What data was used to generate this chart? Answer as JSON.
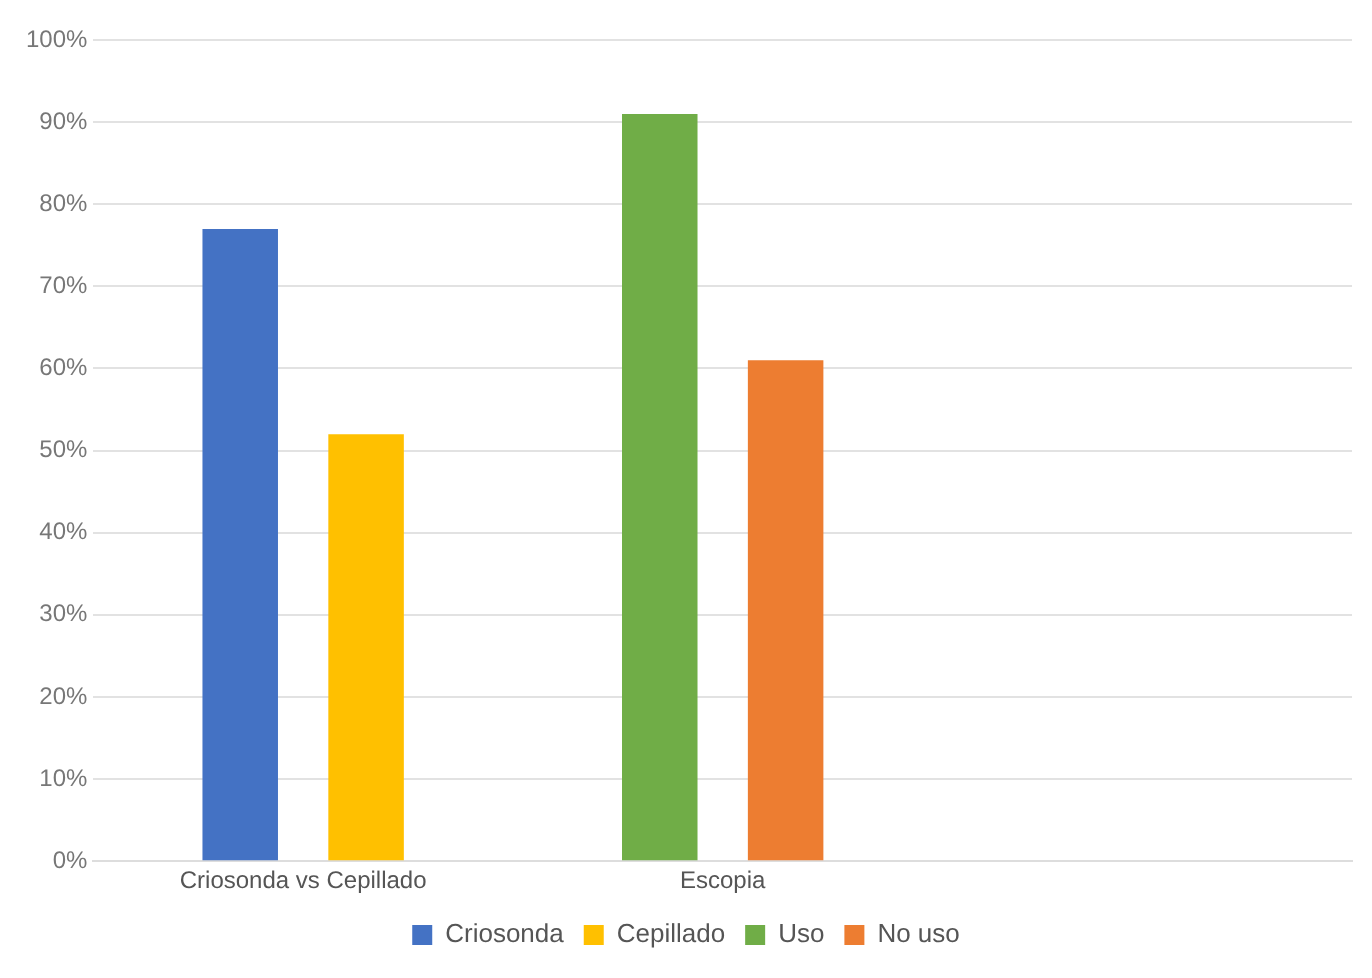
{
  "chart_data": {
    "type": "bar",
    "categories": [
      "Criosonda vs Cepillado",
      "Escopia",
      null
    ],
    "series": [
      {
        "name": "Criosonda",
        "color": "#4472c4",
        "values": [
          77,
          null,
          null
        ]
      },
      {
        "name": "Cepillado",
        "color": "#ffc000",
        "values": [
          52,
          null,
          null
        ]
      },
      {
        "name": "Uso",
        "color": "#70ad47",
        "values": [
          null,
          91,
          null
        ]
      },
      {
        "name": "No uso",
        "color": "#ed7d31",
        "values": [
          null,
          61,
          null
        ]
      }
    ],
    "ylim": [
      0,
      100
    ],
    "yticks": [
      {
        "value": 0,
        "label": "0%"
      },
      {
        "value": 10,
        "label": "10%"
      },
      {
        "value": 20,
        "label": "20%"
      },
      {
        "value": 30,
        "label": "30%"
      },
      {
        "value": 40,
        "label": "40%"
      },
      {
        "value": 50,
        "label": "50%"
      },
      {
        "value": 60,
        "label": "60%"
      },
      {
        "value": 70,
        "label": "70%"
      },
      {
        "value": 80,
        "label": "80%"
      },
      {
        "value": 90,
        "label": "90%"
      },
      {
        "value": 100,
        "label": "100%"
      }
    ],
    "grid": "y",
    "legend": "bottom"
  }
}
